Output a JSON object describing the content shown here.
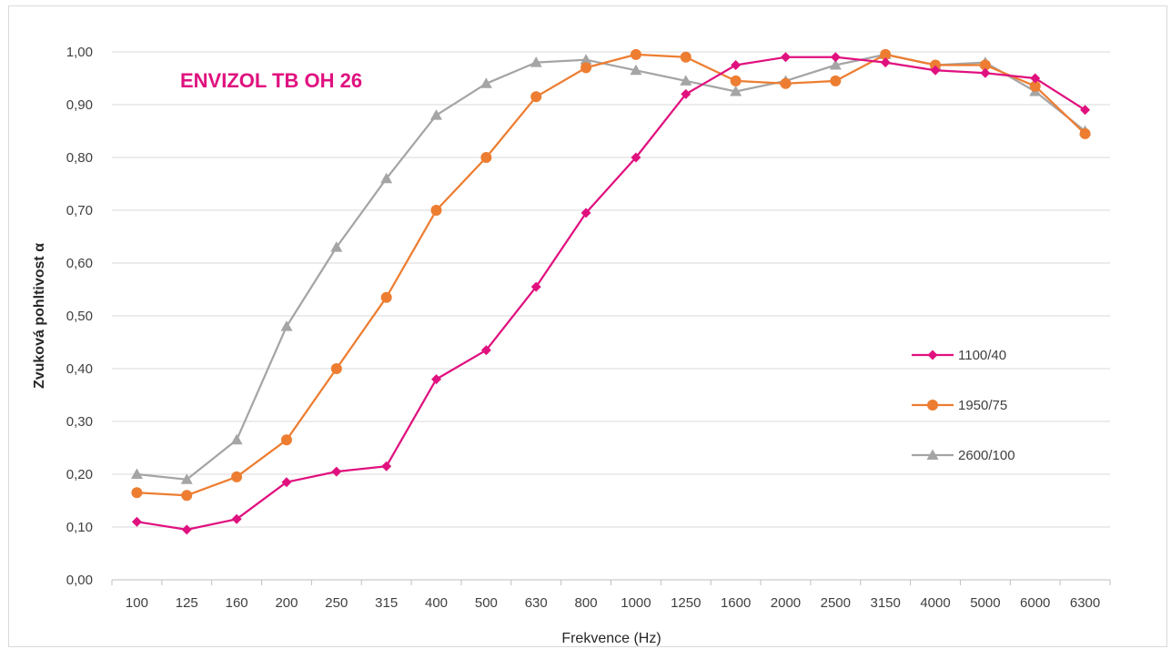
{
  "chart_data": {
    "type": "line",
    "title": "ENVIZOL TB OH 26",
    "title_color": "#e0117f",
    "xlabel": "Frekvence (Hz)",
    "ylabel": "Zvuková pohltivost α",
    "categories": [
      "100",
      "125",
      "160",
      "200",
      "250",
      "315",
      "400",
      "500",
      "630",
      "800",
      "1000",
      "1250",
      "1600",
      "2000",
      "2500",
      "3150",
      "4000",
      "5000",
      "6000",
      "6300"
    ],
    "ylim": [
      0,
      1
    ],
    "yticks": [
      "0,00",
      "0,10",
      "0,20",
      "0,30",
      "0,40",
      "0,50",
      "0,60",
      "0,70",
      "0,80",
      "0,90",
      "1,00"
    ],
    "grid": true,
    "legend_position": "right",
    "series": [
      {
        "name": "1100/40",
        "color": "#e0117f",
        "marker": "diamond",
        "values": [
          0.11,
          0.095,
          0.115,
          0.185,
          0.205,
          0.215,
          0.38,
          0.435,
          0.555,
          0.695,
          0.8,
          0.92,
          0.975,
          0.99,
          0.99,
          0.98,
          0.965,
          0.96,
          0.95,
          0.89
        ]
      },
      {
        "name": "1950/75",
        "color": "#ed7d31",
        "marker": "circle",
        "values": [
          0.165,
          0.16,
          0.195,
          0.265,
          0.4,
          0.535,
          0.7,
          0.8,
          0.915,
          0.97,
          0.995,
          0.99,
          0.945,
          0.94,
          0.945,
          0.995,
          0.975,
          0.975,
          0.935,
          0.845
        ]
      },
      {
        "name": "2600/100",
        "color": "#a5a5a5",
        "marker": "triangle",
        "values": [
          0.2,
          0.19,
          0.265,
          0.48,
          0.63,
          0.76,
          0.88,
          0.94,
          0.98,
          0.985,
          0.965,
          0.945,
          0.925,
          0.945,
          0.975,
          0.995,
          0.975,
          0.98,
          0.925,
          0.85
        ]
      }
    ]
  }
}
